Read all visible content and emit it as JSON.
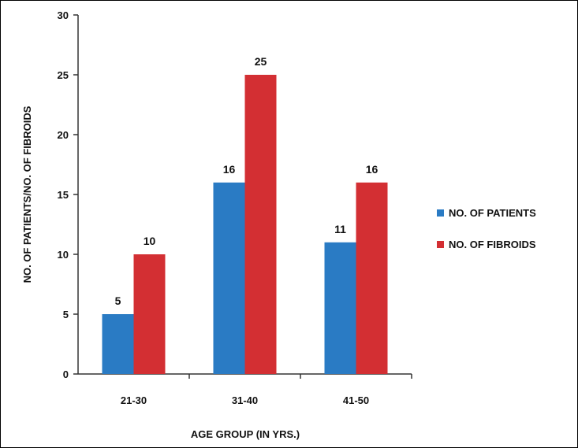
{
  "chart_data": {
    "type": "bar",
    "title": "",
    "xlabel": "AGE GROUP (IN YRS.)",
    "ylabel": "NO. OF PATIENTS/NO. OF FIBROIDS",
    "categories": [
      "21-30",
      "31-40",
      "41-50"
    ],
    "series": [
      {
        "name": "NO. OF PATIENTS",
        "values": [
          5,
          16,
          11
        ],
        "color": "#2a7bc4"
      },
      {
        "name": "NO. OF FIBROIDS",
        "values": [
          10,
          25,
          16
        ],
        "color": "#d32f33"
      }
    ],
    "ylim": [
      0,
      30
    ],
    "yticks": [
      0,
      5,
      10,
      15,
      20,
      25,
      30
    ],
    "data_labels": true,
    "grid": false,
    "legend_position": "right"
  }
}
